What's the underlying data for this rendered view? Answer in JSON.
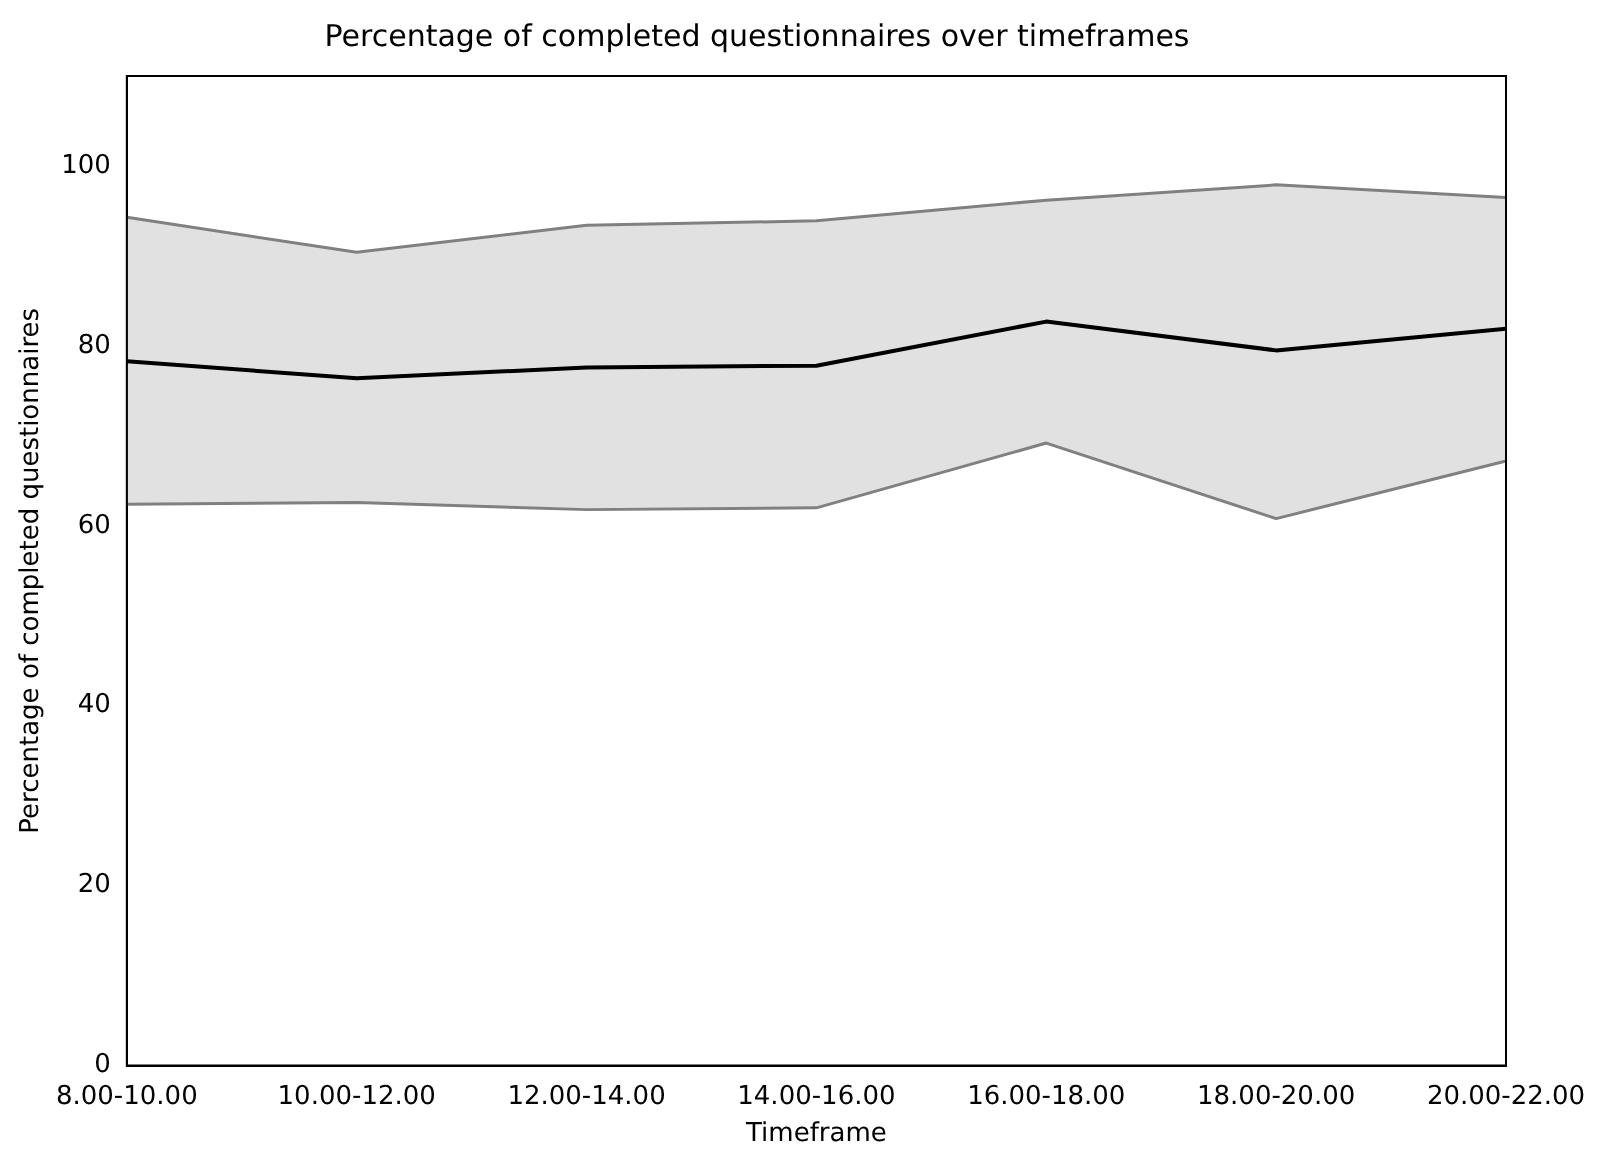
{
  "chart_data": {
    "type": "line",
    "title": "Percentage of completed questionnaires over timeframes",
    "xlabel": "Timeframe",
    "ylabel": "Percentage of completed questionnaires",
    "categories": [
      "8.00-10.00",
      "10.00-12.00",
      "12.00-14.00",
      "14.00-16.00",
      "16.00-18.00",
      "18.00-20.00",
      "20.00-22.00"
    ],
    "series": [
      {
        "color": "#000000",
        "values": [
          78.3,
          76.4,
          77.6,
          77.8,
          82.7,
          79.5,
          81.9
        ],
        "lower": [
          62.4,
          62.6,
          61.8,
          62.0,
          69.2,
          60.8,
          67.2
        ],
        "upper": [
          94.3,
          90.4,
          93.4,
          93.9,
          96.2,
          97.9,
          96.5
        ]
      },
      {
        "color": "#808080",
        "values": [
          94.3,
          90.4,
          93.4,
          93.9,
          96.2,
          97.9,
          96.5
        ]
      },
      {
        "color": "#808080",
        "values": [
          62.4,
          62.6,
          61.8,
          62.0,
          69.2,
          60.8,
          67.2
        ]
      }
    ],
    "ylim": [
      0,
      110
    ],
    "yticks": [
      0,
      20,
      40,
      60,
      80,
      100
    ],
    "grid": false,
    "legend": false
  }
}
